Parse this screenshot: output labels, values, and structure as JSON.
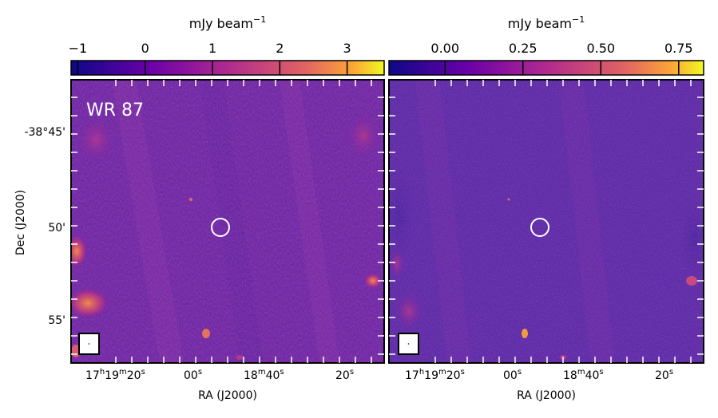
{
  "panels": [
    {
      "label": "WR 87",
      "colorbar": {
        "unit": "mJy beam",
        "unit_exponent": "−1",
        "ticks": [
          "−1",
          "0",
          "1",
          "2",
          "3"
        ],
        "tick_values": [
          -1,
          0,
          1,
          2,
          3
        ],
        "range": [
          -1.1,
          3.55
        ]
      },
      "background": "#6a22a0"
    },
    {
      "label": "",
      "colorbar": {
        "unit": "mJy beam",
        "unit_exponent": "−1",
        "ticks": [
          "0.00",
          "0.25",
          "0.50",
          "0.75"
        ],
        "tick_values": [
          0,
          0.25,
          0.5,
          0.75
        ],
        "range": [
          -0.18,
          0.83
        ]
      },
      "background": "#5a26a2"
    }
  ],
  "axes": {
    "ylabel": "Dec (J2000)",
    "xlabel": "RA (J2000)",
    "yticks": [
      "-38°45'",
      "50'",
      "55'"
    ],
    "xticks": [
      {
        "main": "17",
        "h": "h",
        "m1": "19",
        "m": "m",
        "s1": "20",
        "s": "s"
      },
      {
        "main": "00",
        "s": "s"
      },
      {
        "main": "18",
        "m": "m",
        "s1": "40",
        "s": "s"
      },
      {
        "main": "20",
        "s": "s"
      }
    ]
  },
  "colormap": [
    "#0d0887",
    "#6a00a8",
    "#b12a90",
    "#e16462",
    "#fca636",
    "#f0f921"
  ]
}
